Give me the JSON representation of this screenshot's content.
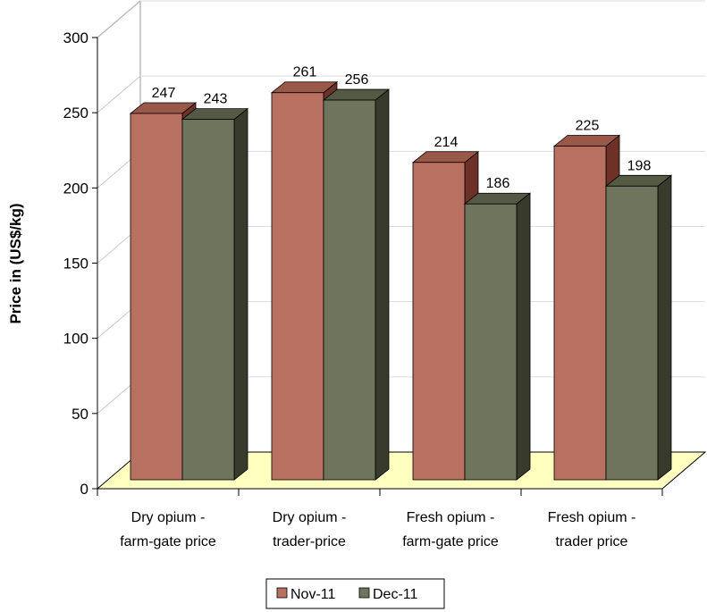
{
  "chart_data": {
    "type": "bar",
    "title": "",
    "xlabel": "",
    "ylabel": "Price in (US$/kg)",
    "ylim": [
      0,
      300
    ],
    "yticks": [
      0,
      50,
      100,
      150,
      200,
      250,
      300
    ],
    "categories": [
      [
        "Dry opium -",
        "farm-gate price"
      ],
      [
        "Dry opium -",
        "trader-price"
      ],
      [
        "Fresh opium -",
        "farm-gate price"
      ],
      [
        "Fresh opium -",
        "trader price"
      ]
    ],
    "series": [
      {
        "name": "Nov-11",
        "values": [
          247,
          261,
          214,
          225
        ],
        "color": "#b87060",
        "top_color": "#9a5848",
        "side_color": "#6e3128"
      },
      {
        "name": "Dec-11",
        "values": [
          243,
          256,
          186,
          198
        ],
        "color": "#6f755c",
        "top_color": "#545a44",
        "side_color": "#383a2c"
      }
    ],
    "legend": "bottom-center",
    "grid": true,
    "floor_color": "#ffffc0",
    "three_d": true
  }
}
